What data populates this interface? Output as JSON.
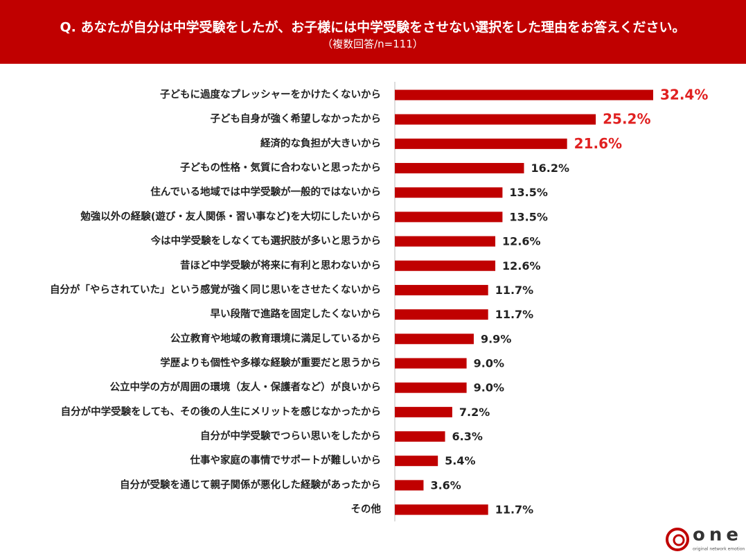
{
  "chart_data": {
    "type": "bar",
    "orientation": "horizontal",
    "title": "Q. あなたが自分は中学受験をしたが、お子様には中学受験をさせない選択をした理由をお答えください。",
    "subtitle": "（複数回答/n=111）",
    "categories": [
      "子どもに過度なプレッシャーをかけたくないから",
      "子ども自身が強く希望しなかったから",
      "経済的な負担が大きいから",
      "子どもの性格・気質に合わないと思ったから",
      "住んでいる地域では中学受験が一般的ではないから",
      "勉強以外の経験(遊び・友人関係・習い事など)を大切にしたいから",
      "今は中学受験をしなくても選択肢が多いと思うから",
      "昔ほど中学受験が将来に有利と思わないから",
      "自分が「やらされていた」という感覚が強く同じ思いをさせたくないから",
      "早い段階で進路を固定したくないから",
      "公立教育や地域の教育環境に満足しているから",
      "学歴よりも個性や多様な経験が重要だと思うから",
      "公立中学の方が周囲の環境（友人・保護者など）が良いから",
      "自分が中学受験をしても、その後の人生にメリットを感じなかったから",
      "自分が中学受験でつらい思いをしたから",
      "仕事や家庭の事情でサポートが難しいから",
      "自分が受験を通じて親子関係が悪化した経験があったから",
      "その他"
    ],
    "values": [
      32.4,
      25.2,
      21.6,
      16.2,
      13.5,
      13.5,
      12.6,
      12.6,
      11.7,
      11.7,
      9.9,
      9.0,
      9.0,
      7.2,
      6.3,
      5.4,
      3.6,
      11.7
    ],
    "value_labels": [
      "32.4%",
      "25.2%",
      "21.6%",
      "16.2%",
      "13.5%",
      "13.5%",
      "12.6%",
      "12.6%",
      "11.7%",
      "11.7%",
      "9.9%",
      "9.0%",
      "9.0%",
      "7.2%",
      "6.3%",
      "5.4%",
      "3.6%",
      "11.7%"
    ],
    "color": "#c00000",
    "value_label_colors": [
      "#e02020",
      "#e02020",
      "#e02020",
      "#222222",
      "#222222",
      "#222222",
      "#222222",
      "#222222",
      "#222222",
      "#222222",
      "#222222",
      "#222222",
      "#222222",
      "#222222",
      "#222222",
      "#222222",
      "#222222",
      "#222222"
    ]
  },
  "logo": {
    "text": "one",
    "tagline": "original network emotion"
  }
}
